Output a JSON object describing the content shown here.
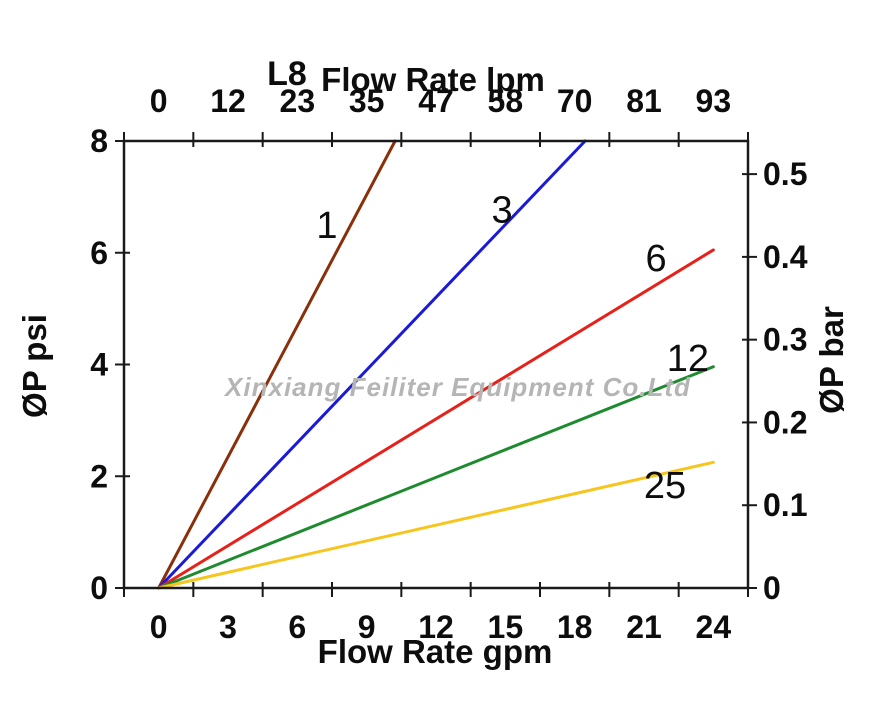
{
  "watermark": "Xinxiang Feiliter Equipment Co.Ltd",
  "chart_data": {
    "type": "line",
    "model": "L8",
    "top_axis_title": "Flow Rate lpm",
    "bottom_axis_title": "Flow Rate gpm",
    "left_axis_title": "ØP psi",
    "right_axis_title": "ØP bar",
    "bottom_ticks_gpm": [
      "0",
      "3",
      "6",
      "9",
      "12",
      "15",
      "18",
      "21",
      "24"
    ],
    "top_ticks_lpm": [
      "0",
      "12",
      "23",
      "35",
      "47",
      "58",
      "70",
      "81",
      "93"
    ],
    "left_ticks_psi": [
      "0",
      "2",
      "4",
      "6",
      "8"
    ],
    "right_ticks_bar": [
      "0",
      "0.1",
      "0.2",
      "0.3",
      "0.4",
      "0.5"
    ],
    "x_range_gpm": [
      0,
      24
    ],
    "left_axis_range_psi": [
      0,
      8
    ],
    "right_axis_range_bar": [
      0,
      0.54
    ],
    "grid": false,
    "legend": "inline-labels-on-curves",
    "series": [
      {
        "label": "1",
        "color": "#8B2F0B",
        "points_gpm_psi": [
          [
            0,
            0
          ],
          [
            10.23,
            8
          ]
        ],
        "label_pos_gpm_psi": [
          7.28,
          6.5
        ]
      },
      {
        "label": "3",
        "color": "#1A1AD9",
        "points_gpm_psi": [
          [
            0,
            0
          ],
          [
            18.45,
            8
          ]
        ],
        "label_pos_gpm_psi": [
          14.86,
          6.77
        ]
      },
      {
        "label": "6",
        "color": "#E82019",
        "points_gpm_psi": [
          [
            0,
            0
          ],
          [
            24,
            6.05
          ]
        ],
        "label_pos_gpm_psi": [
          21.52,
          5.91
        ]
      },
      {
        "label": "12",
        "color": "#1E8B2E",
        "points_gpm_psi": [
          [
            0,
            0
          ],
          [
            24,
            3.96
          ]
        ],
        "label_pos_gpm_psi": [
          22.9,
          4.12
        ]
      },
      {
        "label": "25",
        "color": "#F6C51E",
        "points_gpm_psi": [
          [
            0,
            0
          ],
          [
            24,
            2.25
          ]
        ],
        "label_pos_gpm_psi": [
          21.91,
          1.84
        ]
      }
    ]
  }
}
